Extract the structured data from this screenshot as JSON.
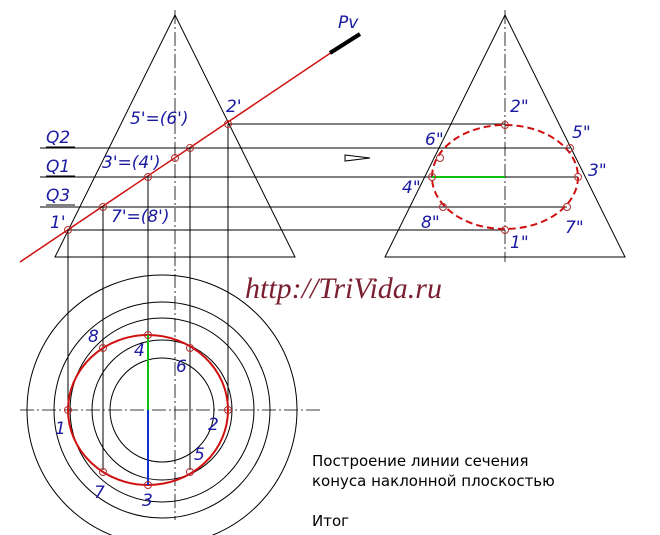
{
  "labels": {
    "plane": "Pv",
    "front": [
      "1'",
      "7'=(8')",
      "3'=(4')",
      "5'=(6')",
      "2'"
    ],
    "levels": [
      "Q2",
      "Q1",
      "Q3"
    ],
    "side": [
      "2\"",
      "6\"",
      "5\"",
      "4\"",
      "3\"",
      "8\"",
      "7\"",
      "1\""
    ],
    "top": [
      "1",
      "2",
      "3",
      "4",
      "5",
      "6",
      "7",
      "8"
    ]
  },
  "watermark": "http://TriVida.ru",
  "caption": {
    "line1": "Построение линии сечения",
    "line2": "конуса наклонной плоскостью",
    "result": "Итог"
  }
}
